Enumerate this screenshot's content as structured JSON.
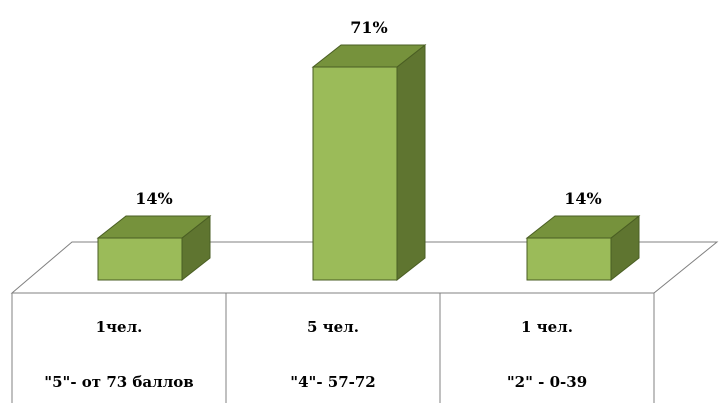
{
  "chart_data": {
    "type": "bar",
    "style": "3d",
    "categories": [
      {
        "count": "1чел.",
        "grade": "\"5\"- от 73 баллов"
      },
      {
        "count": "5 чел.",
        "grade": "\"4\"- 57-72"
      },
      {
        "count": "1 чел.",
        "grade": "\"2\" - 0-39"
      }
    ],
    "values": [
      14,
      71,
      14
    ],
    "data_labels": [
      "14%",
      "71%",
      "14%"
    ],
    "ylim": [
      0,
      75
    ],
    "grid": false,
    "legend": "none",
    "colors": {
      "bar_front": "#9BBB59",
      "bar_top": "#76923C",
      "bar_side": "#5F7530",
      "bar_outline": "#4A5E23",
      "axis": "#808080",
      "text": "#000000"
    }
  }
}
